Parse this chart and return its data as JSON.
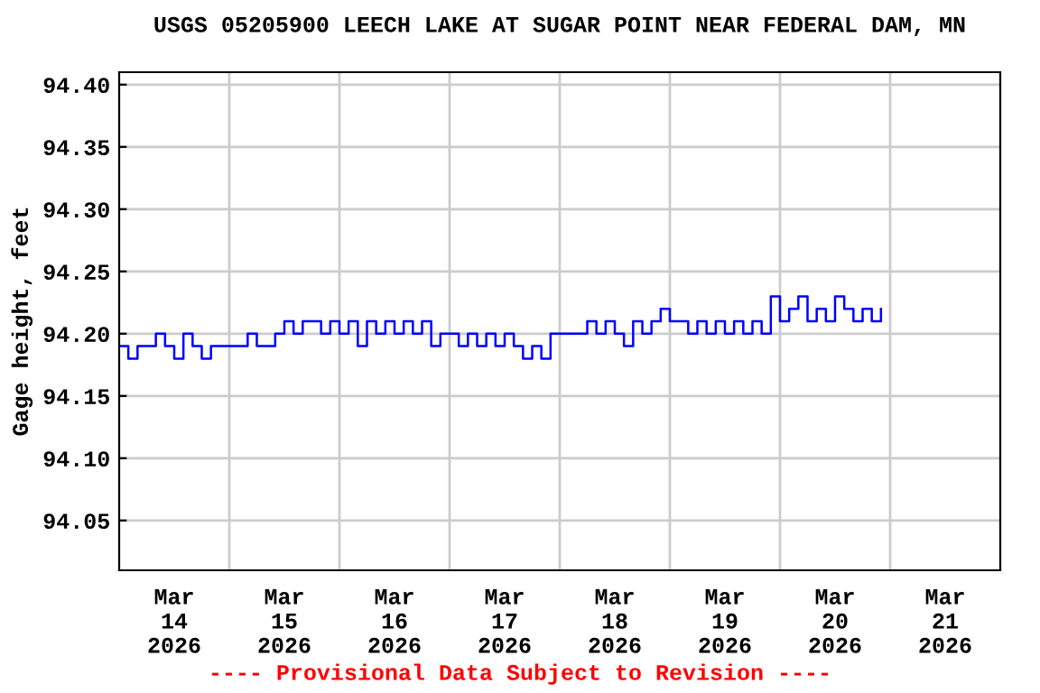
{
  "chart_data": {
    "type": "step",
    "title": "USGS 05205900 LEECH LAKE AT SUGAR POINT NEAR FEDERAL DAM, MN",
    "ylabel": "Gage height, feet",
    "annotations": [
      "---- Provisional Data Subject to Revision ----"
    ],
    "grid": true,
    "legend": false,
    "marker": "none",
    "line_style": "solid",
    "xlim": [
      "2026-03-14T00:00",
      "2026-03-22T00:00"
    ],
    "xticks": [
      {
        "value": "2026-03-14T12:00",
        "label": "Mar\n14\n2026"
      },
      {
        "value": "2026-03-15T00:00",
        "label": null
      },
      {
        "value": "2026-03-15T12:00",
        "label": "Mar\n15\n2026"
      },
      {
        "value": "2026-03-16T00:00",
        "label": null
      },
      {
        "value": "2026-03-16T12:00",
        "label": "Mar\n16\n2026"
      },
      {
        "value": "2026-03-17T00:00",
        "label": null
      },
      {
        "value": "2026-03-17T12:00",
        "label": "Mar\n17\n2026"
      },
      {
        "value": "2026-03-18T00:00",
        "label": null
      },
      {
        "value": "2026-03-18T12:00",
        "label": "Mar\n18\n2026"
      },
      {
        "value": "2026-03-19T00:00",
        "label": null
      },
      {
        "value": "2026-03-19T12:00",
        "label": "Mar\n19\n2026"
      },
      {
        "value": "2026-03-20T00:00",
        "label": null
      },
      {
        "value": "2026-03-20T12:00",
        "label": "Mar\n20\n2026"
      },
      {
        "value": "2026-03-21T00:00",
        "label": null
      },
      {
        "value": "2026-03-21T12:00",
        "label": "Mar\n21\n2026"
      }
    ],
    "ylim": [
      94.01,
      94.41
    ],
    "yticks": [
      94.05,
      {
        "value": 94.1,
        "label": "94.10"
      },
      94.15,
      {
        "value": 94.2,
        "label": "94.20"
      },
      94.25,
      {
        "value": 94.3,
        "label": "94.30"
      },
      94.35,
      {
        "value": 94.4,
        "label": "94.40"
      }
    ],
    "series": [
      {
        "color": "#0000ff",
        "x": [
          "2026-03-14T00:00",
          "2026-03-14T02:00",
          "2026-03-14T04:00",
          "2026-03-14T06:00",
          "2026-03-14T08:00",
          "2026-03-14T10:00",
          "2026-03-14T12:00",
          "2026-03-14T14:00",
          "2026-03-14T16:00",
          "2026-03-14T18:00",
          "2026-03-14T20:00",
          "2026-03-14T22:00",
          "2026-03-15T00:00",
          "2026-03-15T02:00",
          "2026-03-15T04:00",
          "2026-03-15T06:00",
          "2026-03-15T08:00",
          "2026-03-15T10:00",
          "2026-03-15T12:00",
          "2026-03-15T14:00",
          "2026-03-15T16:00",
          "2026-03-15T18:00",
          "2026-03-15T20:00",
          "2026-03-15T22:00",
          "2026-03-16T00:00",
          "2026-03-16T02:00",
          "2026-03-16T04:00",
          "2026-03-16T06:00",
          "2026-03-16T08:00",
          "2026-03-16T10:00",
          "2026-03-16T12:00",
          "2026-03-16T14:00",
          "2026-03-16T16:00",
          "2026-03-16T18:00",
          "2026-03-16T20:00",
          "2026-03-16T22:00",
          "2026-03-17T00:00",
          "2026-03-17T02:00",
          "2026-03-17T04:00",
          "2026-03-17T06:00",
          "2026-03-17T08:00",
          "2026-03-17T10:00",
          "2026-03-17T12:00",
          "2026-03-17T14:00",
          "2026-03-17T16:00",
          "2026-03-17T18:00",
          "2026-03-17T20:00",
          "2026-03-17T22:00",
          "2026-03-18T00:00",
          "2026-03-18T02:00",
          "2026-03-18T04:00",
          "2026-03-18T06:00",
          "2026-03-18T08:00",
          "2026-03-18T10:00",
          "2026-03-18T12:00",
          "2026-03-18T14:00",
          "2026-03-18T16:00",
          "2026-03-18T18:00",
          "2026-03-18T20:00",
          "2026-03-18T22:00",
          "2026-03-19T00:00",
          "2026-03-19T02:00",
          "2026-03-19T04:00",
          "2026-03-19T06:00",
          "2026-03-19T08:00",
          "2026-03-19T10:00",
          "2026-03-19T12:00",
          "2026-03-19T14:00",
          "2026-03-19T16:00",
          "2026-03-19T18:00",
          "2026-03-19T20:00",
          "2026-03-19T22:00",
          "2026-03-20T00:00",
          "2026-03-20T02:00",
          "2026-03-20T04:00",
          "2026-03-20T06:00",
          "2026-03-20T08:00",
          "2026-03-20T10:00",
          "2026-03-20T12:00",
          "2026-03-20T14:00",
          "2026-03-20T16:00",
          "2026-03-20T18:00",
          "2026-03-20T20:00",
          "2026-03-20T22:00"
        ],
        "values": [
          94.19,
          94.18,
          94.19,
          94.19,
          94.2,
          94.19,
          94.18,
          94.2,
          94.19,
          94.18,
          94.19,
          94.19,
          94.19,
          94.19,
          94.2,
          94.19,
          94.19,
          94.2,
          94.21,
          94.2,
          94.21,
          94.21,
          94.2,
          94.21,
          94.2,
          94.21,
          94.19,
          94.21,
          94.2,
          94.21,
          94.2,
          94.21,
          94.2,
          94.21,
          94.19,
          94.2,
          94.2,
          94.19,
          94.2,
          94.19,
          94.2,
          94.19,
          94.2,
          94.19,
          94.18,
          94.19,
          94.18,
          94.2,
          94.2,
          94.2,
          94.2,
          94.21,
          94.2,
          94.21,
          94.2,
          94.19,
          94.21,
          94.2,
          94.21,
          94.22,
          94.21,
          94.21,
          94.2,
          94.21,
          94.2,
          94.21,
          94.2,
          94.21,
          94.2,
          94.21,
          94.2,
          94.23,
          94.21,
          94.22,
          94.23,
          94.21,
          94.22,
          94.21,
          94.23,
          94.22,
          94.21,
          94.22,
          94.21,
          94.22
        ]
      }
    ]
  }
}
